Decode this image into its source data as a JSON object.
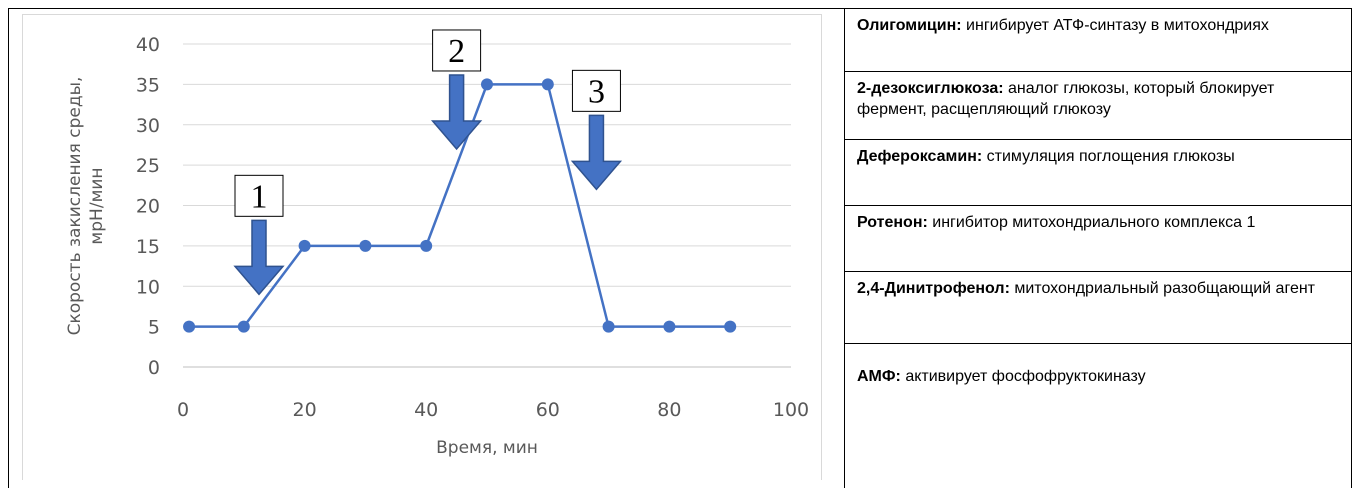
{
  "chart_data": {
    "type": "line",
    "title": "",
    "xlabel": "Время, мин",
    "ylabel_lines": [
      "Скорость закисления среды,",
      "мрН/мин"
    ],
    "xlim": [
      0,
      100
    ],
    "ylim": [
      0,
      40
    ],
    "x_ticks": [
      "0",
      "20",
      "40",
      "60",
      "80",
      "100"
    ],
    "y_ticks": [
      "0",
      "5",
      "10",
      "15",
      "20",
      "25",
      "30",
      "35",
      "40"
    ],
    "grid": "horizontal",
    "line_color": "#4472c4",
    "series": [
      {
        "x": [
          1,
          10,
          20,
          30,
          40,
          50,
          60,
          70,
          80,
          90
        ],
        "y": [
          5,
          5,
          15,
          15,
          15,
          35,
          35,
          5,
          5,
          5
        ]
      }
    ],
    "annotations": [
      {
        "label": "1",
        "x": 12.5,
        "y": 9
      },
      {
        "label": "2",
        "x": 45,
        "y": 27
      },
      {
        "label": "3",
        "x": 68,
        "y": 22
      }
    ],
    "arrow_color": "#4472c4"
  },
  "legend": {
    "items": [
      {
        "term": "Олигомицин:",
        "desc": " ингибирует АТФ-синтазу в митохондриях"
      },
      {
        "term": "2-дезоксиглюкоза:",
        "desc": " аналог глюкозы, который блокирует фермент, расщепляющий глюкозу"
      },
      {
        "term": "Дефероксамин:",
        "desc": " стимуляция поглощения глюкозы"
      },
      {
        "term": "Ротенон:",
        "desc": " ингибитор митохондриального комплекса 1"
      },
      {
        "term": "2,4-Динитрофенол:",
        "desc": " митохондриальный разобщающий агент"
      },
      {
        "term": "АМФ:",
        "desc": " активирует фосфофруктокиназу"
      }
    ]
  }
}
